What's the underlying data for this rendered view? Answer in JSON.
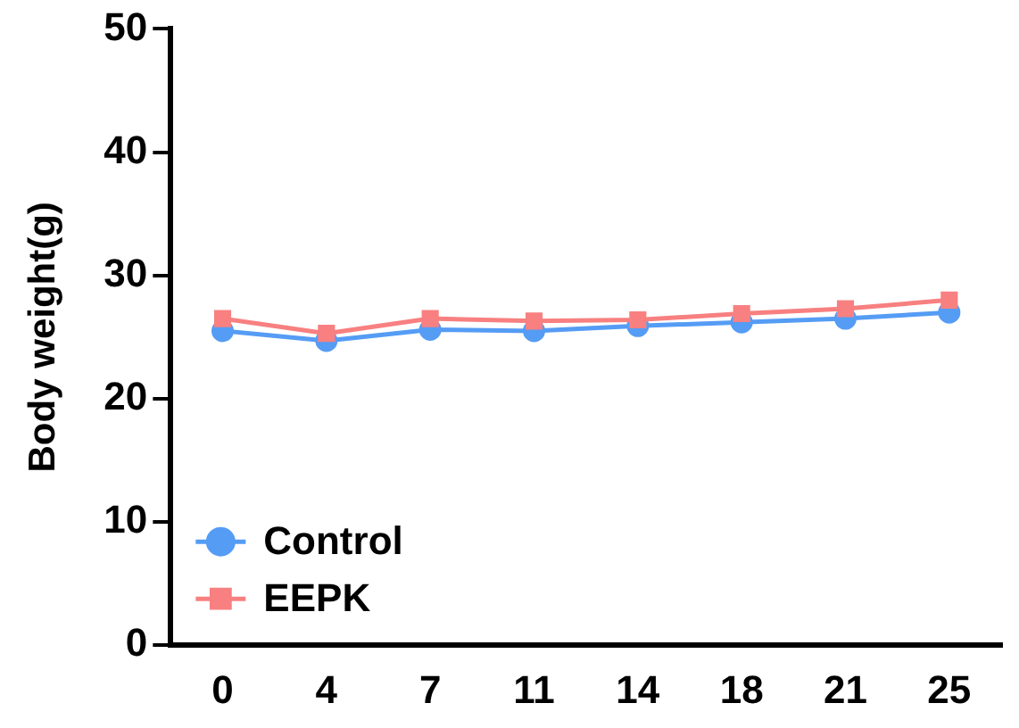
{
  "chart_data": {
    "type": "line",
    "ylabel": "Body weight(g)",
    "categories": [
      "0",
      "4",
      "7",
      "11",
      "14",
      "18",
      "21",
      "25"
    ],
    "series": [
      {
        "name": "Control",
        "color": "#559cf5",
        "marker": "circle",
        "values": [
          25.5,
          24.7,
          25.6,
          25.5,
          25.9,
          26.2,
          26.5,
          27.0
        ]
      },
      {
        "name": "EEPK",
        "color": "#f88080",
        "marker": "square",
        "values": [
          26.5,
          25.3,
          26.5,
          26.3,
          26.4,
          26.9,
          27.3,
          28.0
        ]
      }
    ],
    "ylim": [
      0,
      50
    ],
    "yticks": [
      0,
      10,
      20,
      30,
      40,
      50
    ],
    "grid": false,
    "legend": "bottom left"
  }
}
